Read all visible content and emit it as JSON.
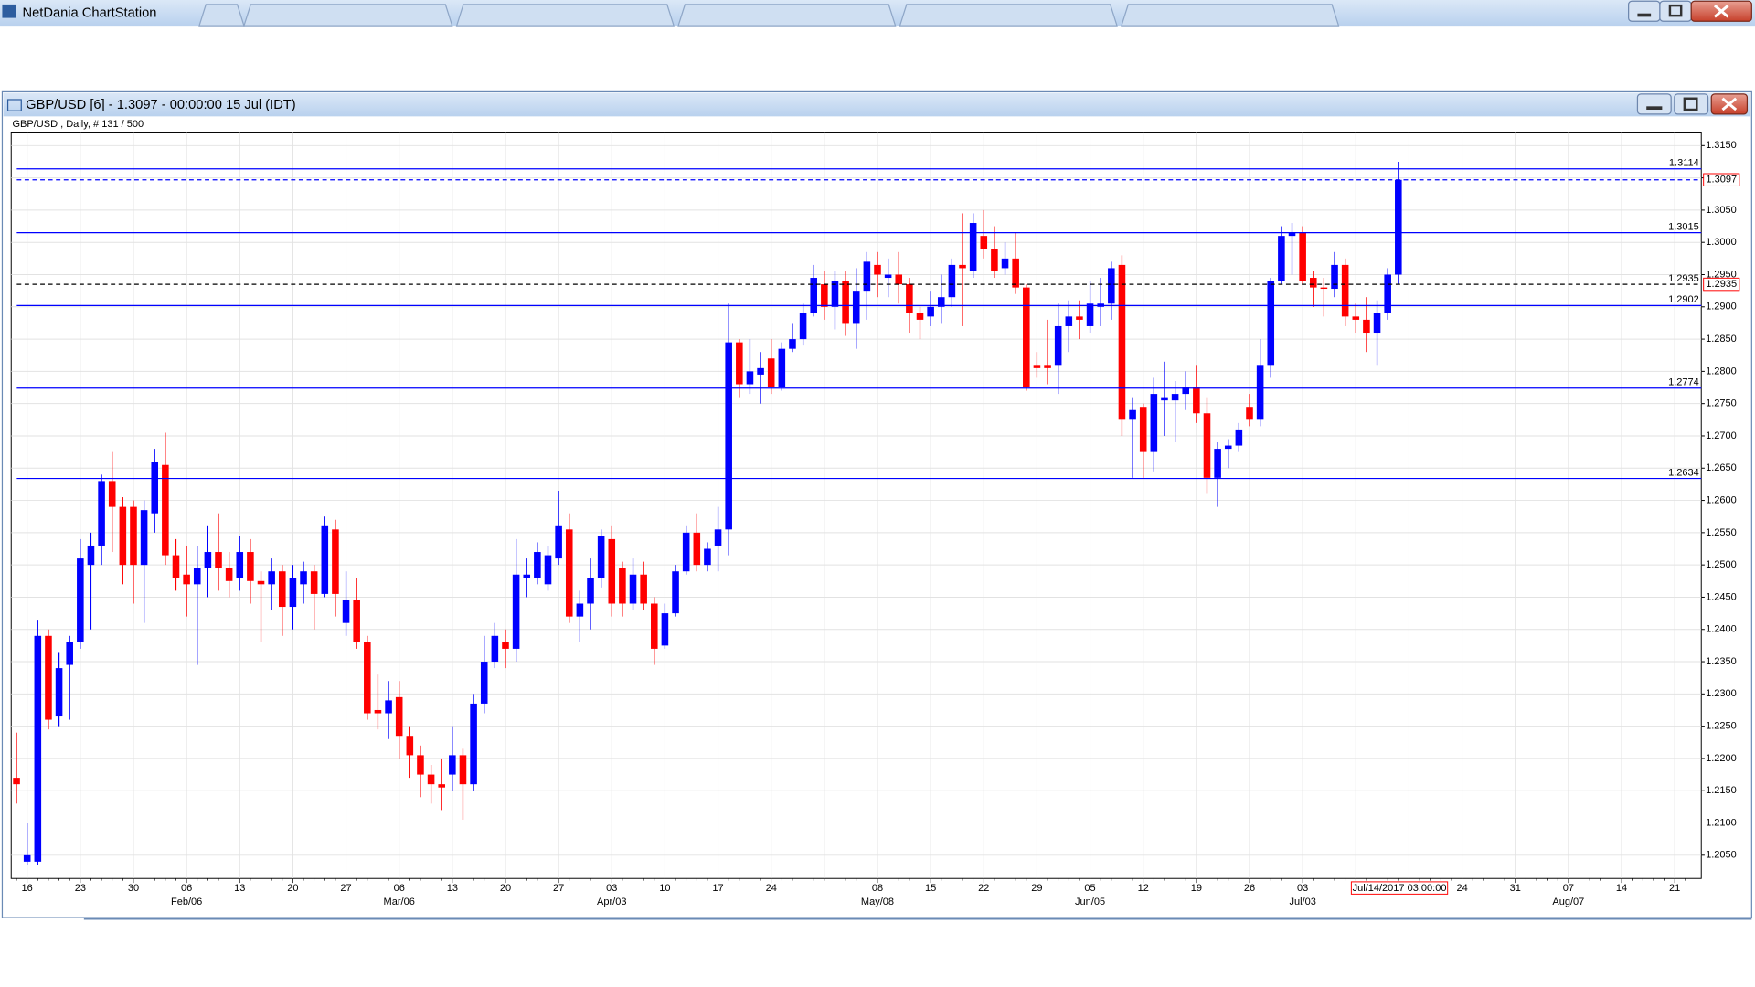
{
  "window": {
    "title": "NetDania ChartStation"
  },
  "chart_window": {
    "title": "GBP/USD [6] - 1.3097 - 00:00:00  15 Jul (IDT)"
  },
  "chart_data": {
    "type": "candlestick",
    "title": "GBP/USD , Daily, # 131 / 500",
    "cursor_label": "Jul/14/2017 03:00:00",
    "up_color": "#0000ff",
    "down_color": "#ff0000",
    "grid": true,
    "ylim": [
      1.2014,
      1.3171
    ],
    "yticks": [
      {
        "value": 1.205,
        "label": "1.2050"
      },
      {
        "value": 1.21,
        "label": "1.2100"
      },
      {
        "value": 1.215,
        "label": "1.2150"
      },
      {
        "value": 1.22,
        "label": "1.2200"
      },
      {
        "value": 1.225,
        "label": "1.2250"
      },
      {
        "value": 1.23,
        "label": "1.2300"
      },
      {
        "value": 1.235,
        "label": "1.2350"
      },
      {
        "value": 1.24,
        "label": "1.2400"
      },
      {
        "value": 1.245,
        "label": "1.2450"
      },
      {
        "value": 1.25,
        "label": "1.2500"
      },
      {
        "value": 1.255,
        "label": "1.2550"
      },
      {
        "value": 1.26,
        "label": "1.2600"
      },
      {
        "value": 1.265,
        "label": "1.2650"
      },
      {
        "value": 1.27,
        "label": "1.2700"
      },
      {
        "value": 1.275,
        "label": "1.2750"
      },
      {
        "value": 1.28,
        "label": "1.2800"
      },
      {
        "value": 1.285,
        "label": "1.2850"
      },
      {
        "value": 1.29,
        "label": "1.2900"
      },
      {
        "value": 1.295,
        "label": "1.2950"
      },
      {
        "value": 1.3,
        "label": "1.3000"
      },
      {
        "value": 1.305,
        "label": "1.3050"
      },
      {
        "value": 1.31,
        "label": "1.3100"
      },
      {
        "value": 1.315,
        "label": "1.3150"
      }
    ],
    "hlines": [
      {
        "value": 1.3114,
        "color": "#0000ff",
        "dash": false,
        "inline_label": true,
        "axis_box": false
      },
      {
        "value": 1.3097,
        "color": "#0000ff",
        "dash": true,
        "inline_label": false,
        "axis_box": true
      },
      {
        "value": 1.3015,
        "color": "#0000ff",
        "dash": false,
        "inline_label": true,
        "axis_box": false
      },
      {
        "value": 1.2935,
        "color": "#000000",
        "dash": true,
        "inline_label": true,
        "axis_box": true
      },
      {
        "value": 1.2902,
        "color": "#0000ff",
        "dash": false,
        "inline_label": true,
        "axis_box": false
      },
      {
        "value": 1.2774,
        "color": "#0000ff",
        "dash": false,
        "inline_label": true,
        "axis_box": false
      },
      {
        "value": 1.2634,
        "color": "#0000ff",
        "dash": false,
        "inline_label": true,
        "axis_box": false
      }
    ],
    "categories": [
      null,
      "16",
      null,
      null,
      null,
      null,
      "23",
      null,
      null,
      null,
      null,
      "30",
      null,
      null,
      null,
      null,
      "06",
      null,
      null,
      null,
      null,
      "13",
      null,
      null,
      null,
      null,
      "20",
      null,
      null,
      null,
      null,
      "27",
      null,
      null,
      null,
      null,
      "06",
      null,
      null,
      null,
      null,
      "13",
      null,
      null,
      null,
      null,
      "20",
      null,
      null,
      null,
      null,
      "27",
      null,
      null,
      null,
      null,
      "03",
      null,
      null,
      null,
      null,
      "10",
      null,
      null,
      null,
      null,
      "17",
      null,
      null,
      null,
      null,
      "24",
      null,
      null,
      null,
      null,
      null,
      null,
      null,
      null,
      null,
      "08",
      null,
      null,
      null,
      null,
      "15",
      null,
      null,
      null,
      null,
      "22",
      null,
      null,
      null,
      null,
      "29",
      null,
      null,
      null,
      null,
      "05",
      null,
      null,
      null,
      null,
      "12",
      null,
      null,
      null,
      null,
      "19",
      null,
      null,
      null,
      null,
      "26",
      null,
      null,
      null,
      null,
      "03",
      null,
      null,
      null,
      null,
      null,
      null,
      null,
      null,
      null,
      null,
      null,
      null,
      null,
      null,
      "24",
      null,
      null,
      null,
      null,
      "31",
      null,
      null,
      null,
      null,
      "07",
      null,
      null,
      null,
      null,
      "14",
      null,
      null,
      null,
      null,
      "21",
      null,
      null
    ],
    "x_sublabels": [
      null,
      null,
      null,
      null,
      null,
      null,
      null,
      null,
      null,
      null,
      null,
      null,
      null,
      null,
      null,
      null,
      "Feb/06",
      null,
      null,
      null,
      null,
      null,
      null,
      null,
      null,
      null,
      null,
      null,
      null,
      null,
      null,
      null,
      null,
      null,
      null,
      null,
      "Mar/06",
      null,
      null,
      null,
      null,
      null,
      null,
      null,
      null,
      null,
      null,
      null,
      null,
      null,
      null,
      null,
      null,
      null,
      null,
      null,
      "Apr/03",
      null,
      null,
      null,
      null,
      null,
      null,
      null,
      null,
      null,
      null,
      null,
      null,
      null,
      null,
      null,
      null,
      null,
      null,
      null,
      null,
      null,
      null,
      null,
      null,
      "May/08",
      null,
      null,
      null,
      null,
      null,
      null,
      null,
      null,
      null,
      null,
      null,
      null,
      null,
      null,
      null,
      null,
      null,
      null,
      null,
      "Jun/05",
      null,
      null,
      null,
      null,
      null,
      null,
      null,
      null,
      null,
      null,
      null,
      null,
      null,
      null,
      null,
      null,
      null,
      null,
      null,
      "Jul/03",
      null,
      null,
      null,
      null,
      null,
      null,
      null,
      null,
      null,
      null,
      null,
      null,
      null,
      null,
      null,
      null,
      null,
      null,
      null,
      null,
      null,
      null,
      null,
      null,
      "Aug/07",
      null,
      null,
      null,
      null,
      null,
      null,
      null,
      null,
      null,
      null,
      null,
      null
    ],
    "open": [
      1.217,
      1.204,
      1.204,
      1.239,
      1.2265,
      1.2345,
      1.238,
      1.25,
      1.253,
      1.263,
      1.259,
      1.259,
      1.25,
      1.258,
      1.2655,
      1.2515,
      1.2485,
      1.247,
      1.2495,
      1.252,
      1.2495,
      1.248,
      1.252,
      1.2475,
      1.247,
      1.249,
      1.2435,
      1.247,
      1.249,
      1.2455,
      1.2555,
      1.241,
      1.2445,
      1.238,
      1.2275,
      1.227,
      1.2295,
      1.2235,
      1.2205,
      1.2175,
      1.216,
      1.2175,
      1.2205,
      1.216,
      1.2285,
      1.235,
      1.238,
      1.237,
      1.248,
      1.248,
      1.247,
      1.251,
      1.2555,
      1.242,
      1.244,
      1.248,
      1.254,
      1.2495,
      1.244,
      1.2485,
      1.244,
      1.2375,
      1.2425,
      1.249,
      1.255,
      1.25,
      1.253,
      1.2555,
      1.2845,
      1.278,
      1.2795,
      1.282,
      1.2775,
      1.2835,
      1.285,
      1.289,
      1.2935,
      1.29,
      1.294,
      1.2875,
      1.2925,
      1.2965,
      1.2945,
      1.295,
      1.2935,
      1.289,
      1.2885,
      1.29,
      1.2915,
      1.2965,
      1.2955,
      1.301,
      1.299,
      1.296,
      1.2975,
      1.293,
      1.281,
      1.281,
      1.281,
      1.287,
      1.2885,
      1.287,
      1.29,
      1.2905,
      1.2965,
      1.2725,
      1.2745,
      1.2675,
      1.2755,
      1.2755,
      1.2765,
      1.2775,
      1.2735,
      1.2635,
      1.268,
      1.2685,
      1.2745,
      1.2725,
      1.281,
      1.294,
      1.301,
      1.3015,
      1.2945,
      1.293,
      1.2928,
      1.2965,
      1.2885,
      1.288,
      1.286,
      1.289,
      1.295,
      null,
      null,
      null,
      null,
      null,
      null,
      null,
      null,
      null,
      null,
      null,
      null,
      null,
      null,
      null,
      null,
      null,
      null,
      null,
      null,
      null,
      null,
      null,
      null,
      null,
      null,
      null,
      null
    ],
    "high": [
      1.224,
      1.21,
      1.2415,
      1.24,
      1.2365,
      1.239,
      1.254,
      1.255,
      1.264,
      1.2675,
      1.2605,
      1.26,
      1.26,
      1.268,
      1.2705,
      1.254,
      1.253,
      1.253,
      1.256,
      1.258,
      1.252,
      1.2545,
      1.254,
      1.249,
      1.251,
      1.25,
      1.25,
      1.2505,
      1.25,
      1.2575,
      1.257,
      1.249,
      1.248,
      1.239,
      1.233,
      1.232,
      1.232,
      1.225,
      1.222,
      1.219,
      1.22,
      1.225,
      1.2215,
      1.23,
      1.239,
      1.241,
      1.24,
      1.254,
      1.251,
      1.2535,
      1.253,
      1.2615,
      1.258,
      1.246,
      1.251,
      1.2555,
      1.256,
      1.2505,
      1.251,
      1.2505,
      1.245,
      1.244,
      1.25,
      1.256,
      1.258,
      1.2535,
      1.259,
      1.2905,
      1.285,
      1.285,
      1.283,
      1.285,
      1.2845,
      1.2875,
      1.2905,
      1.2965,
      1.2955,
      1.2955,
      1.2955,
      1.296,
      1.2985,
      1.2985,
      1.2975,
      1.2985,
      1.2945,
      1.29,
      1.2925,
      1.295,
      1.2975,
      1.3045,
      1.3045,
      1.305,
      1.3025,
      1.3,
      1.3015,
      1.2935,
      1.283,
      1.288,
      1.2905,
      1.291,
      1.291,
      1.294,
      1.2945,
      1.297,
      1.298,
      1.276,
      1.275,
      1.279,
      1.2815,
      1.2785,
      1.28,
      1.281,
      1.276,
      1.269,
      1.2695,
      1.272,
      1.2765,
      1.285,
      1.2945,
      1.3025,
      1.303,
      1.3025,
      1.2955,
      1.2945,
      1.2985,
      1.2975,
      1.2905,
      1.2915,
      1.291,
      1.296,
      1.3125,
      null,
      null,
      null,
      null,
      null,
      null,
      null,
      null,
      null,
      null,
      null,
      null,
      null,
      null,
      null,
      null,
      null,
      null,
      null,
      null,
      null,
      null,
      null,
      null,
      null,
      null,
      null,
      null
    ],
    "low": [
      1.213,
      1.2035,
      1.2035,
      1.2245,
      1.225,
      1.226,
      1.237,
      1.24,
      1.25,
      1.252,
      1.247,
      1.244,
      1.241,
      1.255,
      1.25,
      1.246,
      1.242,
      1.2345,
      1.245,
      1.246,
      1.245,
      1.246,
      1.244,
      1.238,
      1.243,
      1.239,
      1.24,
      1.244,
      1.24,
      1.245,
      1.242,
      1.239,
      1.237,
      1.226,
      1.2245,
      1.223,
      1.22,
      1.217,
      1.214,
      1.213,
      1.212,
      1.215,
      1.2105,
      1.215,
      1.227,
      1.234,
      1.234,
      1.235,
      1.245,
      1.247,
      1.246,
      1.25,
      1.241,
      1.238,
      1.24,
      1.2465,
      1.242,
      1.242,
      1.243,
      1.243,
      1.2345,
      1.237,
      1.242,
      1.2485,
      1.249,
      1.249,
      1.249,
      1.2515,
      1.276,
      1.2765,
      1.275,
      1.2765,
      1.277,
      1.283,
      1.284,
      1.2885,
      1.288,
      1.2865,
      1.2855,
      1.2835,
      1.288,
      1.2915,
      1.2915,
      1.2905,
      1.286,
      1.285,
      1.287,
      1.2875,
      1.29,
      1.287,
      1.2945,
      1.2975,
      1.2945,
      1.295,
      1.292,
      1.277,
      1.279,
      1.278,
      1.2765,
      1.283,
      1.285,
      1.286,
      1.287,
      1.288,
      1.27,
      1.2635,
      1.2635,
      1.2645,
      1.27,
      1.269,
      1.274,
      1.272,
      1.261,
      1.259,
      1.265,
      1.2675,
      1.2715,
      1.2715,
      1.279,
      1.2935,
      1.295,
      1.2935,
      1.29,
      1.2885,
      1.2915,
      1.287,
      1.286,
      1.283,
      1.281,
      1.288,
      1.2935,
      null,
      null,
      null,
      null,
      null,
      null,
      null,
      null,
      null,
      null,
      null,
      null,
      null,
      null,
      null,
      null,
      null,
      null,
      null,
      null,
      null,
      null,
      null,
      null,
      null,
      null,
      null,
      null
    ],
    "close": [
      1.216,
      1.205,
      1.239,
      1.226,
      1.234,
      1.238,
      1.251,
      1.253,
      1.263,
      1.259,
      1.25,
      1.25,
      1.2585,
      1.266,
      1.2515,
      1.248,
      1.247,
      1.2495,
      1.252,
      1.2495,
      1.2475,
      1.252,
      1.2475,
      1.247,
      1.249,
      1.2435,
      1.248,
      1.249,
      1.2455,
      1.256,
      1.2455,
      1.2445,
      1.238,
      1.227,
      1.227,
      1.229,
      1.2235,
      1.2205,
      1.2175,
      1.216,
      1.2155,
      1.2205,
      1.216,
      1.2285,
      1.235,
      1.239,
      1.237,
      1.2485,
      1.2485,
      1.252,
      1.2515,
      1.256,
      1.242,
      1.244,
      1.248,
      1.2545,
      1.244,
      1.244,
      1.2485,
      1.244,
      1.237,
      1.2425,
      1.249,
      1.255,
      1.25,
      1.2525,
      1.2555,
      1.2845,
      1.278,
      1.28,
      1.2805,
      1.2775,
      1.2835,
      1.285,
      1.289,
      1.2945,
      1.29,
      1.294,
      1.2875,
      1.2925,
      1.297,
      1.295,
      1.295,
      1.2935,
      1.289,
      1.288,
      1.29,
      1.2915,
      1.2965,
      1.296,
      1.303,
      1.299,
      1.2955,
      1.2975,
      1.293,
      1.2775,
      1.2805,
      1.2805,
      1.287,
      1.2885,
      1.288,
      1.2905,
      1.2905,
      1.296,
      1.2725,
      1.274,
      1.2675,
      1.2765,
      1.276,
      1.2765,
      1.2775,
      1.2735,
      1.2635,
      1.268,
      1.2685,
      1.271,
      1.2725,
      1.281,
      1.294,
      1.301,
      1.3015,
      1.294,
      1.293,
      1.2928,
      1.2965,
      1.2885,
      1.288,
      1.286,
      1.289,
      1.295,
      1.3097,
      null,
      null,
      null,
      null,
      null,
      null,
      null,
      null,
      null,
      null,
      null,
      null,
      null,
      null,
      null,
      null,
      null,
      null,
      null,
      null,
      null,
      null,
      null,
      null,
      null,
      null,
      null,
      null
    ]
  }
}
